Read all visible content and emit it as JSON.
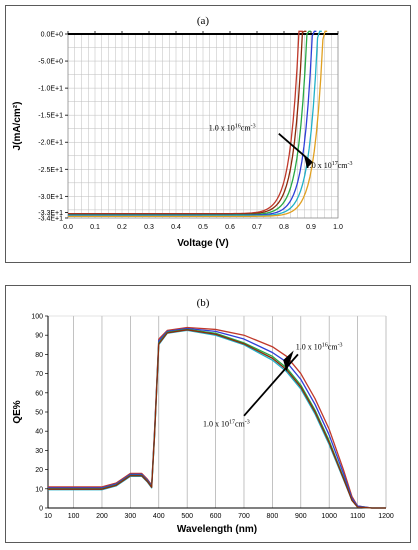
{
  "chart_data": [
    {
      "type": "line",
      "panel_label": "(a)",
      "xlabel": "Voltage (V)",
      "ylabel": "J(mA/cm²)",
      "xlim": [
        0,
        1.0
      ],
      "ylim": [
        -34,
        0
      ],
      "xticks": [
        {
          "v": 0.0,
          "label": "0.0"
        },
        {
          "v": 0.1,
          "label": "0.1"
        },
        {
          "v": 0.2,
          "label": "0.2"
        },
        {
          "v": 0.3,
          "label": "0.3"
        },
        {
          "v": 0.4,
          "label": "0.4"
        },
        {
          "v": 0.5,
          "label": "0.5"
        },
        {
          "v": 0.6,
          "label": "0.6"
        },
        {
          "v": 0.7,
          "label": "0.7"
        },
        {
          "v": 0.8,
          "label": "0.8"
        },
        {
          "v": 0.9,
          "label": "0.9"
        },
        {
          "v": 1.0,
          "label": "1.0"
        }
      ],
      "yticks": [
        {
          "v": 0,
          "label": "0.0E+0"
        },
        {
          "v": -5,
          "label": "-5.0E+0"
        },
        {
          "v": -10,
          "label": "-1.0E+1"
        },
        {
          "v": -15,
          "label": "-1.5E+1"
        },
        {
          "v": -20,
          "label": "-2.0E+1"
        },
        {
          "v": -25,
          "label": "-2.5E+1"
        },
        {
          "v": -30,
          "label": "-3.0E+1"
        },
        {
          "v": -33,
          "label": "-3.3E+1"
        },
        {
          "v": -34,
          "label": "-3.4E+1"
        }
      ],
      "grid": true,
      "series": [
        {
          "color": "#c0392b",
          "jsc": -33.2,
          "voc": 0.855
        },
        {
          "color": "#8b2a0a",
          "jsc": -33.3,
          "voc": 0.868
        },
        {
          "color": "#27a844",
          "jsc": -33.4,
          "voc": 0.885
        },
        {
          "color": "#2e3fd8",
          "jsc": -33.5,
          "voc": 0.905
        },
        {
          "color": "#20b0c8",
          "jsc": -33.6,
          "voc": 0.925
        },
        {
          "color": "#e0a020",
          "jsc": -33.7,
          "voc": 0.945
        }
      ],
      "annotations": [
        {
          "base": "1.0 x 10",
          "exp": "16",
          "unit": "cm",
          "uexp": "-3",
          "at_x": 0.64,
          "at_y": -17.5,
          "arrow_to": [
            0.855,
            -17.5
          ]
        },
        {
          "base": "1.0 x 10",
          "exp": "17",
          "unit": "cm",
          "uexp": "-3",
          "at_x": 0.91,
          "at_y": -24.2,
          "arrow_to": [
            0.862,
            -24.0
          ]
        }
      ]
    },
    {
      "type": "line",
      "panel_label": "(b)",
      "xlabel": "Wavelength (nm)",
      "ylabel": "QE%",
      "xlim": [
        10,
        1200
      ],
      "ylim": [
        0,
        100
      ],
      "xticks": [
        {
          "v": 10,
          "label": "10"
        },
        {
          "v": 100,
          "label": "100"
        },
        {
          "v": 200,
          "label": "200"
        },
        {
          "v": 300,
          "label": "300"
        },
        {
          "v": 400,
          "label": "400"
        },
        {
          "v": 500,
          "label": "500"
        },
        {
          "v": 600,
          "label": "600"
        },
        {
          "v": 700,
          "label": "700"
        },
        {
          "v": 800,
          "label": "800"
        },
        {
          "v": 900,
          "label": "900"
        },
        {
          "v": 1000,
          "label": "1000"
        },
        {
          "v": 1100,
          "label": "1100"
        },
        {
          "v": 1200,
          "label": "1200"
        }
      ],
      "yticks": [
        {
          "v": 0,
          "label": "0"
        },
        {
          "v": 10,
          "label": "10"
        },
        {
          "v": 20,
          "label": "20"
        },
        {
          "v": 30,
          "label": "30"
        },
        {
          "v": 40,
          "label": "40"
        },
        {
          "v": 50,
          "label": "50"
        },
        {
          "v": 60,
          "label": "60"
        },
        {
          "v": 70,
          "label": "70"
        },
        {
          "v": 80,
          "label": "80"
        },
        {
          "v": 90,
          "label": "90"
        },
        {
          "v": 100,
          "label": "100"
        }
      ],
      "grid": "vertical",
      "x": [
        10,
        100,
        200,
        250,
        300,
        340,
        360,
        375,
        385,
        400,
        430,
        500,
        600,
        700,
        800,
        850,
        900,
        950,
        1000,
        1050,
        1080,
        1100,
        1150,
        1200
      ],
      "series": [
        {
          "color": "#c0392b",
          "values": [
            11,
            11,
            11,
            13,
            18,
            18,
            15,
            12,
            40,
            88,
            92.5,
            94,
            93,
            90,
            84,
            79,
            70,
            57,
            41,
            20,
            6,
            1,
            0,
            0
          ]
        },
        {
          "color": "#2e3fd8",
          "values": [
            10.5,
            10.5,
            10.5,
            12.5,
            17.5,
            17.5,
            14.5,
            11.5,
            39,
            87,
            92,
            93.5,
            92,
            88,
            81,
            76,
            67,
            54,
            38,
            18,
            5,
            1,
            0,
            0
          ]
        },
        {
          "color": "#27a844",
          "values": [
            10,
            10,
            10,
            12,
            17,
            17,
            14,
            11,
            38,
            86,
            91.5,
            93,
            91,
            86,
            79,
            73,
            64,
            51,
            35,
            16,
            4,
            0.5,
            0,
            0
          ]
        },
        {
          "color": "#20b0c8",
          "values": [
            9.5,
            9.5,
            9.5,
            11.5,
            16.5,
            16.5,
            13.5,
            10.5,
            37,
            85,
            91,
            92.5,
            90,
            85,
            77,
            71,
            62,
            49,
            33,
            15,
            4,
            0.5,
            0,
            0
          ]
        },
        {
          "color": "#8b2a0a",
          "values": [
            9.8,
            9.8,
            9.8,
            11.8,
            16.8,
            16.8,
            13.8,
            10.8,
            37.5,
            85.5,
            91.2,
            92.8,
            90.5,
            85.5,
            78,
            72,
            63,
            50,
            34,
            15.5,
            4,
            0.5,
            0,
            0
          ]
        }
      ],
      "annotations": [
        {
          "base": "1.0 x 10",
          "exp": "16",
          "unit": "cm",
          "uexp": "-3",
          "at_x": 900,
          "at_y": 84,
          "arrow_to": [
            865,
            73
          ]
        },
        {
          "base": "1.0 x 10",
          "exp": "17",
          "unit": "cm",
          "uexp": "-3",
          "at_x": 640,
          "at_y": 44,
          "arrow_to": [
            850,
            69
          ]
        }
      ]
    }
  ]
}
